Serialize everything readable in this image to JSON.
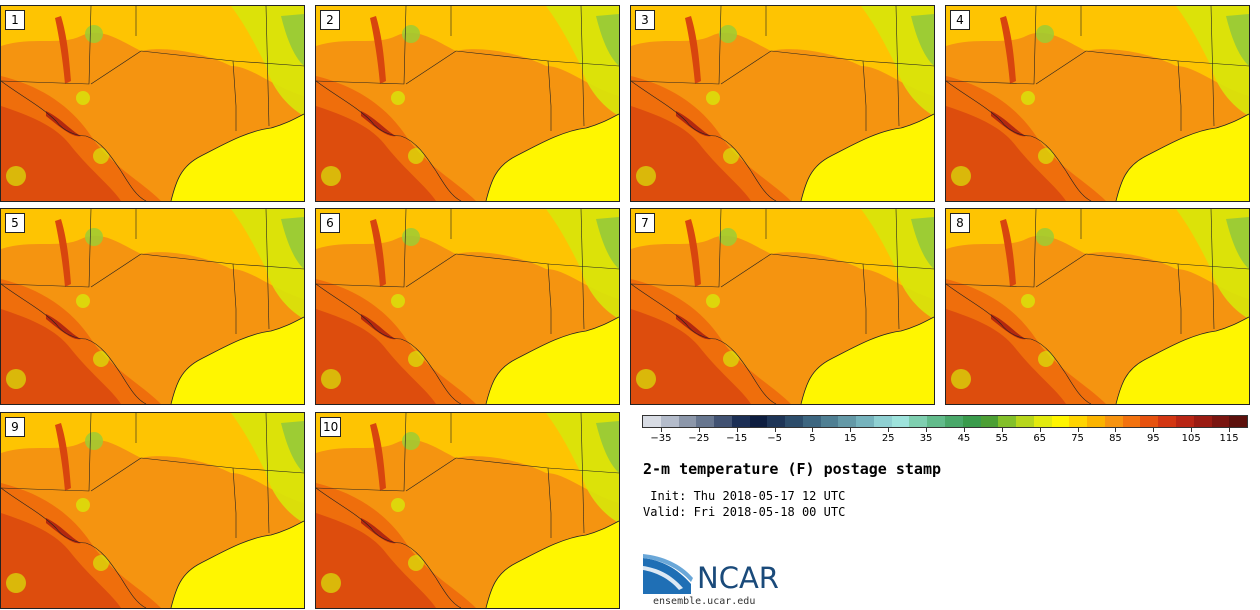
{
  "panels": [
    {
      "label": "1"
    },
    {
      "label": "2"
    },
    {
      "label": "3"
    },
    {
      "label": "4"
    },
    {
      "label": "5"
    },
    {
      "label": "6"
    },
    {
      "label": "7"
    },
    {
      "label": "8"
    },
    {
      "label": "9"
    },
    {
      "label": "10"
    }
  ],
  "colorbar": {
    "colors": [
      "#d8dce4",
      "#b4bccb",
      "#8c97aa",
      "#67768f",
      "#415272",
      "#1c2f55",
      "#0d1d3f",
      "#1e3557",
      "#2d4d6b",
      "#3d6680",
      "#4f7f93",
      "#6499a7",
      "#76b3bd",
      "#8fd0d2",
      "#9ee3dc",
      "#7fcfb0",
      "#62bb8b",
      "#4aa86a",
      "#3a9b4c",
      "#4c9f35",
      "#83c02a",
      "#b7d61c",
      "#e2ea0e",
      "#fff500",
      "#ffd400",
      "#fbb300",
      "#f7930f",
      "#f2720f",
      "#e6520f",
      "#d23612",
      "#b82514",
      "#9a1b12",
      "#7a1510",
      "#5c100c"
    ],
    "ticks": [
      "−35",
      "−25",
      "−15",
      "−5",
      "5",
      "15",
      "25",
      "35",
      "45",
      "55",
      "65",
      "75",
      "85",
      "95",
      "105",
      "115"
    ],
    "min": -35,
    "max": 120
  },
  "map_colors": {
    "gulf": "#fff600",
    "base_warm": "#f59410",
    "hot": "#ef6e0c",
    "very_hot": "#d8450e",
    "hottest": "#b3280f",
    "mild": "#ffcc00",
    "cool": "#d8e60a",
    "cooler": "#9dcc34",
    "border": "#222222"
  },
  "title": "2-m temperature (F) postage stamp",
  "init": " Init: Thu 2018-05-17 12 UTC",
  "valid": "Valid: Fri 2018-05-18 00 UTC",
  "logo": {
    "text": "NCAR",
    "url_text": "ensemble.ucar.edu"
  }
}
